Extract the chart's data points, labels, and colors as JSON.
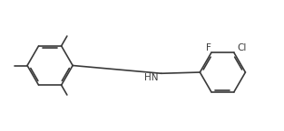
{
  "background": "#ffffff",
  "line_color": "#3a3a3a",
  "line_width": 1.2,
  "text_color": "#3a3a3a",
  "label_F": "F",
  "label_Cl": "Cl",
  "label_NH": "HN",
  "font_size": 7.5
}
